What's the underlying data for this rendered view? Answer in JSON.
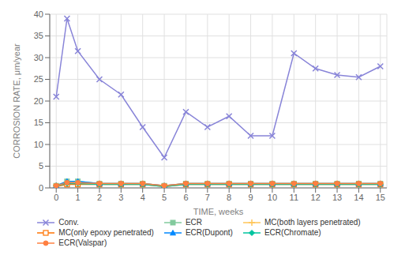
{
  "chart_data": {
    "type": "line",
    "x": [
      0,
      0.5,
      1,
      2,
      3,
      4,
      5,
      6,
      7,
      8,
      9,
      10,
      11,
      12,
      13,
      14,
      15
    ],
    "series": [
      {
        "name": "Conv.",
        "color": "#8884d8",
        "marker": "x",
        "values": [
          21,
          39,
          31.5,
          25,
          21.5,
          14,
          7,
          17.5,
          14,
          16.5,
          12,
          12,
          31,
          27.5,
          26,
          25.5,
          28
        ]
      },
      {
        "name": "ECR",
        "color": "#82ca9d",
        "marker": "square",
        "values": [
          0.5,
          1.5,
          1.5,
          1,
          1,
          1,
          0.5,
          1,
          1,
          1,
          1,
          1,
          1,
          1,
          1,
          1,
          1
        ]
      },
      {
        "name": "MC(both layers penetrated)",
        "color": "#ffc658",
        "marker": "plus",
        "values": [
          0.5,
          1.2,
          1.2,
          1,
          1,
          1,
          0.5,
          1,
          1,
          1,
          1,
          1,
          1,
          1,
          1,
          1,
          1
        ]
      },
      {
        "name": "MC(only epoxy penetrated)",
        "color": "#ff7300",
        "marker": "square_open",
        "values": [
          0.3,
          0.8,
          0.8,
          0.8,
          0.8,
          0.8,
          0.3,
          0.8,
          0.8,
          0.8,
          0.8,
          0.8,
          0.8,
          0.8,
          0.8,
          0.8,
          0.8
        ]
      },
      {
        "name": "ECR(Dupont)",
        "color": "#0088fe",
        "marker": "triangle",
        "values": [
          0.5,
          1.5,
          1.5,
          1,
          1,
          1,
          0.5,
          1,
          1,
          1,
          1,
          1,
          1,
          1,
          1,
          1,
          1
        ]
      },
      {
        "name": "ECR(Chromate)",
        "color": "#00c49f",
        "marker": "diamond",
        "values": [
          0.5,
          1.0,
          1.0,
          0.8,
          0.8,
          0.8,
          0.3,
          0.8,
          0.8,
          0.8,
          0.8,
          0.8,
          0.8,
          0.8,
          0.8,
          0.8,
          0.8
        ]
      },
      {
        "name": "ECR(Valspar)",
        "color": "#ff8042",
        "marker": "circle",
        "values": [
          0.5,
          1.2,
          1.2,
          1,
          1,
          1,
          0.5,
          1,
          1,
          1,
          1,
          1,
          1,
          1,
          1,
          1,
          1
        ]
      }
    ],
    "xlabel": "TIME, weeks",
    "ylabel": "CORROSION RATE, μm/year",
    "xlim": [
      -0.3,
      15.3
    ],
    "ylim": [
      0,
      40
    ],
    "xticks": [
      0,
      1,
      2,
      3,
      4,
      5,
      6,
      7,
      8,
      9,
      10,
      11,
      12,
      13,
      14,
      15
    ],
    "yticks": [
      0,
      5,
      10,
      15,
      20,
      25,
      30,
      35,
      40
    ],
    "grid": true,
    "legend": "bottom"
  }
}
